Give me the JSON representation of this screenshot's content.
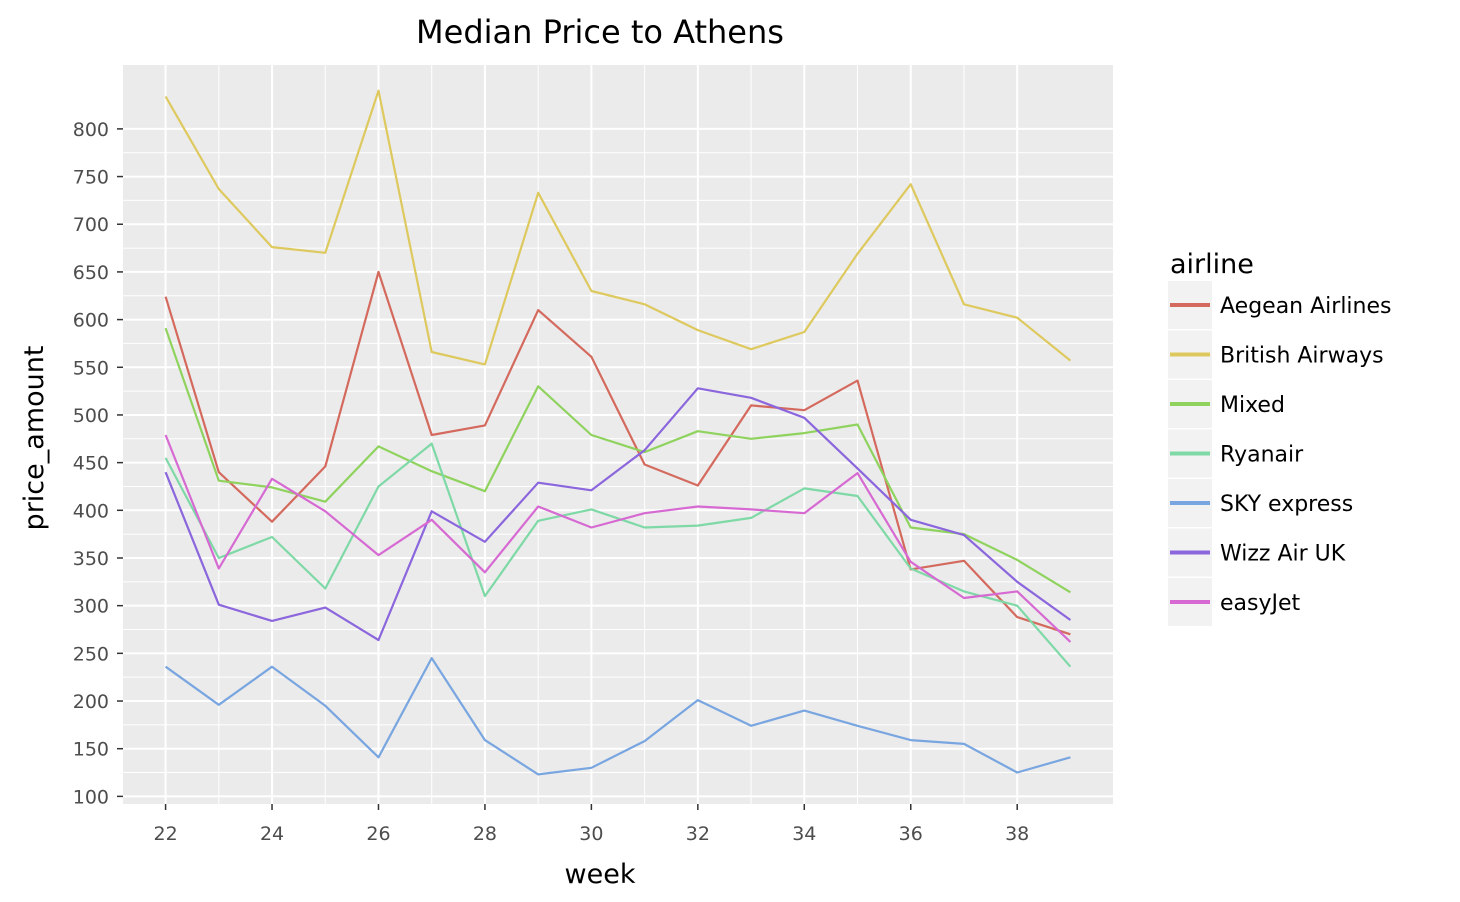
{
  "chart_data": {
    "type": "line",
    "title": "Median Price to Athens",
    "xlabel": "week",
    "ylabel": "price_amount",
    "xlim": [
      21.2,
      39.8
    ],
    "ylim": [
      92,
      867
    ],
    "x_ticks": [
      22,
      24,
      26,
      28,
      30,
      32,
      34,
      36,
      38
    ],
    "y_ticks": [
      100,
      150,
      200,
      250,
      300,
      350,
      400,
      450,
      500,
      550,
      600,
      650,
      700,
      750,
      800
    ],
    "grid": true,
    "legend_title": "airline",
    "legend_position": "right",
    "x": [
      22,
      23,
      24,
      25,
      26,
      27,
      28,
      29,
      30,
      31,
      32,
      33,
      34,
      35,
      36,
      37,
      38,
      39
    ],
    "series": [
      {
        "name": "Aegean Airlines",
        "color": "#D46A5E",
        "values": [
          624,
          440,
          388,
          446,
          650,
          479,
          489,
          610,
          561,
          448,
          426,
          510,
          505,
          536,
          338,
          347,
          288,
          270
        ]
      },
      {
        "name": "British Airways",
        "color": "#DEC95E",
        "values": [
          834,
          737,
          676,
          670,
          840,
          566,
          553,
          733,
          630,
          616,
          589,
          569,
          587,
          669,
          742,
          616,
          602,
          557
        ]
      },
      {
        "name": "Mixed",
        "color": "#8FD35E",
        "values": [
          591,
          431,
          424,
          409,
          467,
          441,
          420,
          530,
          479,
          461,
          483,
          475,
          481,
          490,
          382,
          375,
          348,
          314
        ]
      },
      {
        "name": "Ryanair",
        "color": "#7ED9A6",
        "values": [
          455,
          350,
          372,
          318,
          425,
          470,
          310,
          389,
          401,
          382,
          384,
          392,
          423,
          415,
          339,
          315,
          300,
          236
        ]
      },
      {
        "name": "SKY express",
        "color": "#79A6E0",
        "values": [
          236,
          196,
          236,
          195,
          141,
          245,
          159,
          123,
          130,
          158,
          201,
          174,
          190,
          174,
          159,
          155,
          125,
          141
        ]
      },
      {
        "name": "Wizz Air UK",
        "color": "#8B66DD",
        "values": [
          440,
          301,
          284,
          298,
          264,
          399,
          367,
          429,
          421,
          463,
          528,
          518,
          497,
          444,
          390,
          374,
          325,
          285
        ]
      },
      {
        "name": "easyJet",
        "color": "#D66AD2",
        "values": [
          479,
          339,
          433,
          399,
          353,
          390,
          335,
          404,
          382,
          397,
          404,
          401,
          397,
          439,
          346,
          308,
          315,
          262
        ]
      }
    ]
  }
}
